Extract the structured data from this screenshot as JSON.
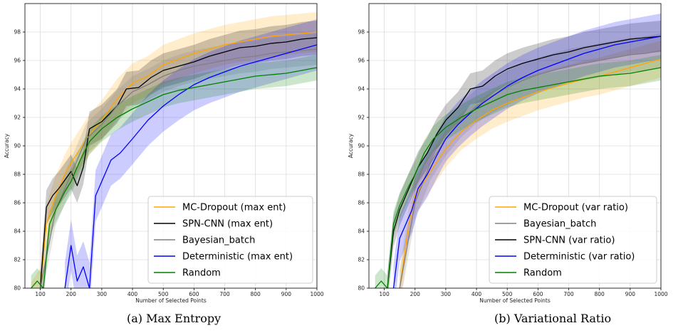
{
  "captions": [
    "(a) Max Entropy",
    "(b) Variational Ratio"
  ],
  "chart_data": [
    {
      "type": "line",
      "xlabel": "Number of Selected Points",
      "ylabel": "Accuracy",
      "xlim": [
        50,
        1000
      ],
      "ylim": [
        80,
        100
      ],
      "xticks": [
        100,
        200,
        300,
        400,
        500,
        600,
        700,
        800,
        900,
        1000
      ],
      "yticks": [
        80,
        82,
        84,
        86,
        88,
        90,
        92,
        94,
        96,
        98
      ],
      "grid": true,
      "legend_position": "bottom-right",
      "series": [
        {
          "name": "MC-Dropout (max ent)",
          "color": "#ffa500",
          "x": [
            70,
            100,
            120,
            150,
            180,
            200,
            230,
            260,
            300,
            350,
            400,
            450,
            500,
            550,
            600,
            650,
            700,
            750,
            800,
            850,
            900,
            950,
            1000
          ],
          "y": [
            79.0,
            80.0,
            84.5,
            86.5,
            88.0,
            88.8,
            89.8,
            90.8,
            91.8,
            93.3,
            94.4,
            94.9,
            95.7,
            96.1,
            96.5,
            96.8,
            97.1,
            97.3,
            97.5,
            97.7,
            97.8,
            97.9,
            98.0
          ],
          "band": 1.4
        },
        {
          "name": "SPN-CNN (max ent)",
          "color": "#000000",
          "x": [
            100,
            120,
            140,
            160,
            180,
            200,
            220,
            240,
            260,
            300,
            350,
            380,
            420,
            460,
            500,
            550,
            600,
            650,
            700,
            750,
            800,
            850,
            900,
            950,
            1000
          ],
          "y": [
            80.0,
            85.7,
            86.5,
            87.0,
            87.6,
            88.2,
            87.2,
            88.5,
            91.2,
            91.7,
            92.8,
            94.0,
            94.1,
            94.8,
            95.3,
            95.6,
            95.9,
            96.3,
            96.6,
            96.9,
            97.0,
            97.2,
            97.3,
            97.5,
            97.6
          ],
          "band": 1.2
        },
        {
          "name": "Bayesian_batch",
          "color": "#808080",
          "x": [
            100,
            150,
            200,
            250,
            300,
            350,
            400,
            450,
            500,
            550,
            600,
            650,
            700,
            750,
            800,
            850,
            900,
            950,
            1000
          ],
          "y": [
            80.0,
            85.5,
            88.0,
            90.5,
            91.5,
            92.8,
            93.8,
            94.3,
            94.9,
            95.3,
            95.6,
            95.8,
            96.0,
            96.2,
            96.3,
            96.5,
            96.6,
            96.7,
            96.8
          ],
          "band": 1.1
        },
        {
          "name": "Deterministic (max ent)",
          "color": "#0000ff",
          "x": [
            180,
            200,
            220,
            240,
            260,
            280,
            300,
            330,
            360,
            400,
            450,
            500,
            550,
            600,
            650,
            700,
            750,
            800,
            850,
            900,
            950,
            1000
          ],
          "y": [
            80.0,
            83.0,
            80.5,
            81.5,
            80.0,
            86.5,
            87.5,
            89.0,
            89.5,
            90.5,
            91.8,
            92.8,
            93.6,
            94.3,
            94.8,
            95.2,
            95.6,
            95.9,
            96.2,
            96.5,
            96.8,
            97.1
          ],
          "band": 1.8
        },
        {
          "name": "Random",
          "color": "#008000",
          "x": [
            70,
            90,
            110,
            130,
            150,
            180,
            200,
            230,
            260,
            300,
            350,
            400,
            450,
            500,
            550,
            600,
            650,
            700,
            750,
            800,
            850,
            900,
            950,
            1000
          ],
          "y": [
            80.0,
            80.5,
            80.0,
            84.5,
            85.5,
            86.8,
            87.5,
            89.0,
            90.3,
            91.2,
            92.0,
            92.6,
            93.1,
            93.6,
            93.9,
            94.1,
            94.3,
            94.5,
            94.7,
            94.9,
            95.0,
            95.1,
            95.3,
            95.5
          ],
          "band": 0.9
        }
      ]
    },
    {
      "type": "line",
      "xlabel": "Number of Selected Points",
      "ylabel": "Accuracy",
      "xlim": [
        50,
        1000
      ],
      "ylim": [
        80,
        100
      ],
      "xticks": [
        100,
        200,
        300,
        400,
        500,
        600,
        700,
        800,
        900,
        1000
      ],
      "yticks": [
        80,
        82,
        84,
        86,
        88,
        90,
        92,
        94,
        96,
        98
      ],
      "grid": true,
      "legend_position": "bottom-right",
      "series": [
        {
          "name": "MC-Dropout (var ratio)",
          "color": "#ffa500",
          "x": [
            150,
            180,
            200,
            230,
            260,
            300,
            350,
            400,
            450,
            500,
            550,
            600,
            650,
            700,
            750,
            800,
            850,
            900,
            950,
            1000
          ],
          "y": [
            80.0,
            84.5,
            86.5,
            87.5,
            88.5,
            89.8,
            91.0,
            91.8,
            92.5,
            93.0,
            93.4,
            93.8,
            94.1,
            94.4,
            94.7,
            94.9,
            95.2,
            95.5,
            95.8,
            96.1
          ],
          "band": 1.3
        },
        {
          "name": "Bayesian_batch",
          "color": "#808080",
          "x": [
            150,
            200,
            250,
            300,
            350,
            400,
            450,
            500,
            550,
            600,
            650,
            700,
            750,
            800,
            850,
            900,
            950,
            1000
          ],
          "y": [
            80.0,
            86.0,
            88.8,
            90.5,
            91.8,
            92.8,
            93.5,
            94.1,
            94.6,
            95.0,
            95.3,
            95.6,
            95.8,
            96.0,
            96.2,
            96.4,
            96.5,
            96.7
          ],
          "band": 1.2
        },
        {
          "name": "SPN-CNN (var ratio)",
          "color": "#000000",
          "x": [
            110,
            130,
            150,
            170,
            190,
            210,
            240,
            270,
            300,
            340,
            380,
            420,
            460,
            500,
            550,
            600,
            650,
            700,
            750,
            800,
            850,
            900,
            950,
            1000
          ],
          "y": [
            80.0,
            84.0,
            85.5,
            86.5,
            87.5,
            88.5,
            89.5,
            90.8,
            91.8,
            92.7,
            94.0,
            94.2,
            94.9,
            95.4,
            95.8,
            96.1,
            96.4,
            96.6,
            96.9,
            97.1,
            97.3,
            97.5,
            97.6,
            97.7
          ],
          "band": 1.1
        },
        {
          "name": "Deterministic (var ratio)",
          "color": "#0000ff",
          "x": [
            130,
            150,
            170,
            190,
            210,
            240,
            270,
            300,
            340,
            380,
            420,
            460,
            500,
            550,
            600,
            650,
            700,
            750,
            800,
            850,
            900,
            950,
            1000
          ],
          "y": [
            80.0,
            83.5,
            84.5,
            85.5,
            87.0,
            88.0,
            89.3,
            90.5,
            91.5,
            92.3,
            93.0,
            93.6,
            94.2,
            94.8,
            95.3,
            95.7,
            96.1,
            96.5,
            96.8,
            97.1,
            97.3,
            97.5,
            97.7
          ],
          "band": 1.6
        },
        {
          "name": "Random",
          "color": "#008000",
          "x": [
            70,
            90,
            110,
            130,
            150,
            180,
            200,
            230,
            260,
            300,
            350,
            400,
            450,
            500,
            550,
            600,
            650,
            700,
            750,
            800,
            850,
            900,
            950,
            1000
          ],
          "y": [
            80.0,
            80.5,
            80.0,
            84.5,
            85.8,
            87.2,
            88.0,
            89.5,
            90.5,
            91.3,
            92.0,
            92.6,
            93.1,
            93.6,
            93.9,
            94.1,
            94.3,
            94.5,
            94.7,
            94.9,
            95.0,
            95.1,
            95.3,
            95.5
          ],
          "band": 0.9
        }
      ]
    }
  ]
}
